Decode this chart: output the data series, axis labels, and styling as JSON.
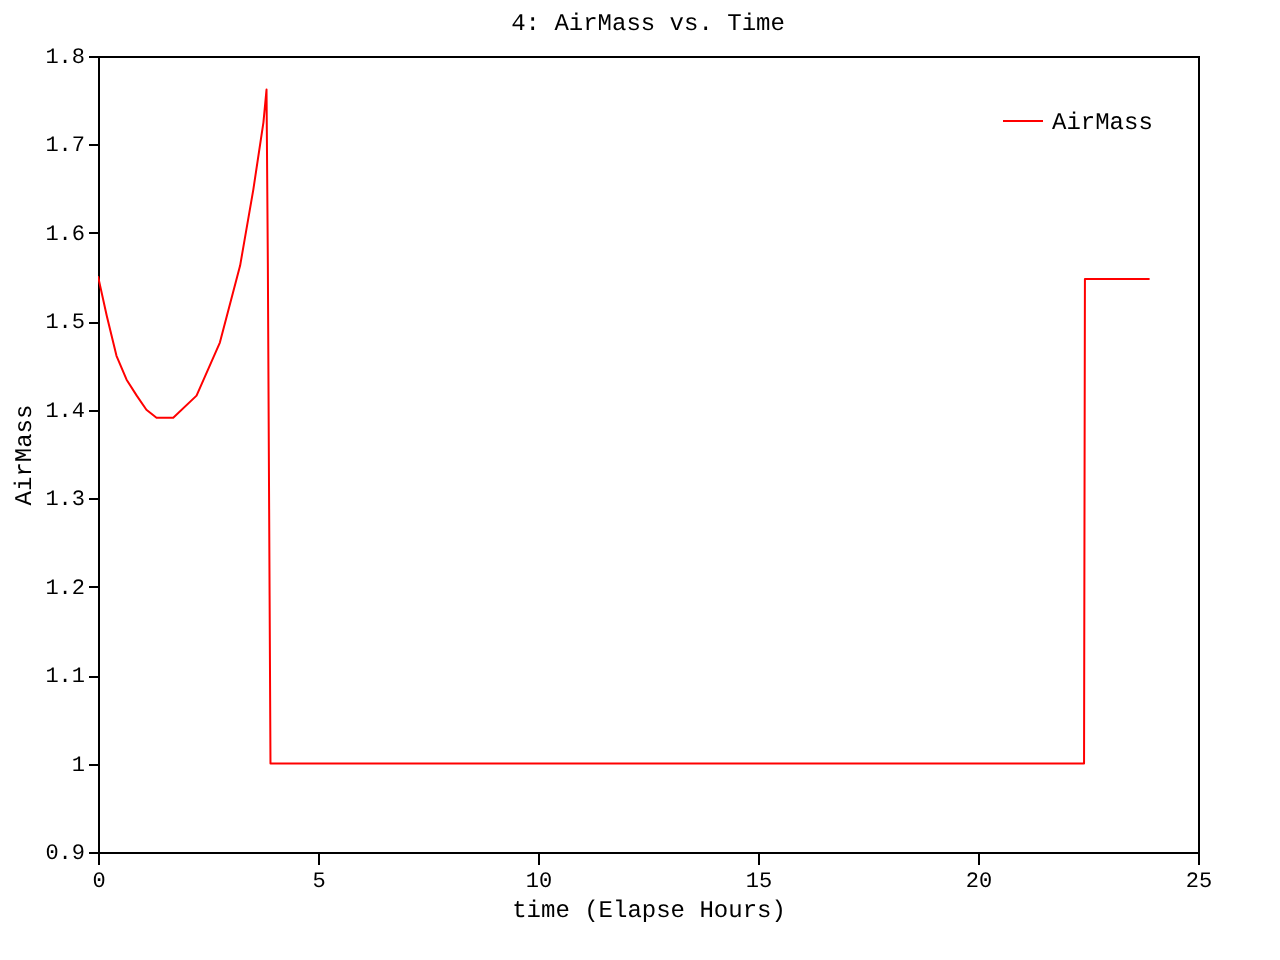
{
  "chart_data": {
    "type": "line",
    "title": "4: AirMass vs. Time",
    "xlabel": "time (Elapse Hours)",
    "ylabel": "AirMass",
    "xlim": [
      0,
      25
    ],
    "xticks": [
      0,
      5,
      10,
      15,
      20,
      25
    ],
    "ylim": [
      0.9,
      1.8
    ],
    "yticks": [
      0.9,
      1,
      1.1,
      1.2,
      1.3,
      1.4,
      1.5,
      1.6,
      1.7,
      1.8
    ],
    "legend": "top right",
    "grid": false,
    "marker": "none",
    "line_style": "solid",
    "series": [
      {
        "name": "AirMass",
        "color": "#ff0000",
        "x": [
          0,
          0.2,
          0.42,
          0.65,
          0.88,
          1.1,
          1.33,
          1.71,
          2.24,
          2.77,
          3.23,
          3.53,
          3.76,
          3.83,
          3.86,
          3.9,
          3.92,
          22.41,
          22.42,
          22.43,
          23.9
        ],
        "values": [
          1.551,
          1.506,
          1.461,
          1.434,
          1.416,
          1.4,
          1.391,
          1.391,
          1.416,
          1.476,
          1.563,
          1.649,
          1.725,
          1.762,
          1.566,
          1.19,
          1.0,
          1.0,
          1.272,
          1.548,
          1.548
        ]
      }
    ]
  }
}
